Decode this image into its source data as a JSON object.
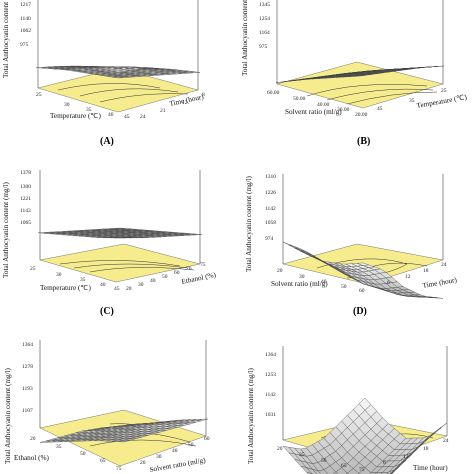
{
  "colors": {
    "floor": "#f6ec8e",
    "surface_light": "#f4f4f4",
    "surface_dark": "#a8a8a8",
    "contour": "#333333"
  },
  "chart_data": [
    {
      "type": "surface3d",
      "panel_label": "(A)",
      "zlabel": "Total Anthocyanin content",
      "xlabel": "Temperature (℃)",
      "ylabel": "Time (hour)",
      "ztick_labels": [
        "1217",
        "1140",
        "1062",
        "975"
      ],
      "xtick_labels": [
        "25",
        "30",
        "35",
        "40",
        "45"
      ],
      "ytick_labels": [
        "24",
        "21",
        "12",
        "8"
      ],
      "z_grid": [
        [
          1000,
          1030,
          1060,
          1090,
          1120
        ],
        [
          1050,
          1080,
          1110,
          1140,
          1165
        ],
        [
          1100,
          1130,
          1160,
          1185,
          1205
        ],
        [
          1140,
          1170,
          1195,
          1210,
          1217
        ]
      ]
    },
    {
      "type": "surface3d",
      "panel_label": "(B)",
      "zlabel": "Total Anthocyanin content",
      "xlabel": "Solvent ratio (ml/g)",
      "ylabel": "Temperature (℃)",
      "ztick_labels": [
        "1345",
        "1254",
        "1164",
        "975"
      ],
      "xtick_labels": [
        "60.00",
        "50.00",
        "40.00",
        "30.00",
        "20.00"
      ],
      "ytick_labels": [
        "45",
        "35",
        "25"
      ],
      "z_grid": [
        [
          1000,
          1060,
          1120,
          1180,
          1230
        ],
        [
          1040,
          1100,
          1160,
          1220,
          1270
        ],
        [
          1080,
          1140,
          1200,
          1260,
          1310
        ],
        [
          1110,
          1170,
          1230,
          1290,
          1345
        ]
      ]
    },
    {
      "type": "surface3d",
      "panel_label": "(C)",
      "zlabel": "Total Anthocyanin content (mg/l)",
      "xlabel": "Temperature (℃)",
      "ylabel": "Ethanol (%)",
      "ztick_labels": [
        "1378",
        "1300",
        "1221",
        "1143",
        "1065"
      ],
      "xtick_labels": [
        "25",
        "30",
        "35",
        "40",
        "45"
      ],
      "ytick_labels": [
        "20",
        "30",
        "40",
        "50",
        "60",
        "70",
        "75"
      ],
      "z_grid": [
        [
          1200,
          1220,
          1240,
          1260,
          1280
        ],
        [
          1230,
          1250,
          1270,
          1290,
          1310
        ],
        [
          1260,
          1280,
          1300,
          1320,
          1340
        ],
        [
          1290,
          1310,
          1330,
          1350,
          1378
        ]
      ]
    },
    {
      "type": "surface3d",
      "panel_label": "(D)",
      "zlabel": "Total Anthocyanin content (mg/l)",
      "xlabel": "Solvent ratio (ml/g)",
      "ylabel": "Time (hour)",
      "ztick_labels": [
        "1310",
        "1226",
        "1142",
        "1058",
        "974"
      ],
      "xtick_labels": [
        "20",
        "30",
        "40",
        "50",
        "60"
      ],
      "ytick_labels": [
        "6",
        "12",
        "18",
        "24"
      ],
      "z_grid": [
        [
          1060,
          1020,
          990,
          980,
          1000
        ],
        [
          1090,
          1050,
          1020,
          1010,
          1040
        ],
        [
          1150,
          1110,
          1080,
          1080,
          1120
        ],
        [
          1240,
          1200,
          1180,
          1190,
          1240
        ],
        [
          1310,
          1280,
          1260,
          1270,
          1305
        ]
      ]
    },
    {
      "type": "surface3d",
      "panel_label": "",
      "zlabel": "Total Anthocyanin content (mg/l)",
      "xlabel": "Ethanol (%)",
      "ylabel": "Solvent ratio (ml/g)",
      "ztick_labels": [
        "1364",
        "1278",
        "1193",
        "1107"
      ],
      "xtick_labels": [
        "20",
        "35",
        "50",
        "65",
        "75"
      ],
      "ytick_labels": [
        "20",
        "30",
        "40",
        "50",
        "60"
      ],
      "z_grid": [
        [
          1100,
          1150,
          1200,
          1250,
          1300
        ],
        [
          1140,
          1190,
          1240,
          1290,
          1330
        ],
        [
          1170,
          1220,
          1270,
          1320,
          1350
        ],
        [
          1200,
          1250,
          1300,
          1340,
          1364
        ]
      ]
    },
    {
      "type": "surface3d",
      "panel_label": "",
      "zlabel": "Total Anthocyanin content (mg/l)",
      "xlabel": "Time (hour)",
      "ylabel": "",
      "ztick_labels": [
        "1364",
        "1253",
        "1142",
        "1031"
      ],
      "xtick_labels": [
        "6",
        "12",
        "18",
        "24"
      ],
      "ytick_labels": [
        "20",
        "35",
        "50",
        "65",
        "75"
      ],
      "z_grid": [
        [
          1300,
          1240,
          1200,
          1220,
          1290
        ],
        [
          1250,
          1190,
          1150,
          1170,
          1250
        ],
        [
          1200,
          1140,
          1100,
          1120,
          1200
        ],
        [
          1180,
          1110,
          1060,
          1080,
          1150
        ],
        [
          1210,
          1150,
          1100,
          1120,
          1190
        ]
      ]
    }
  ]
}
